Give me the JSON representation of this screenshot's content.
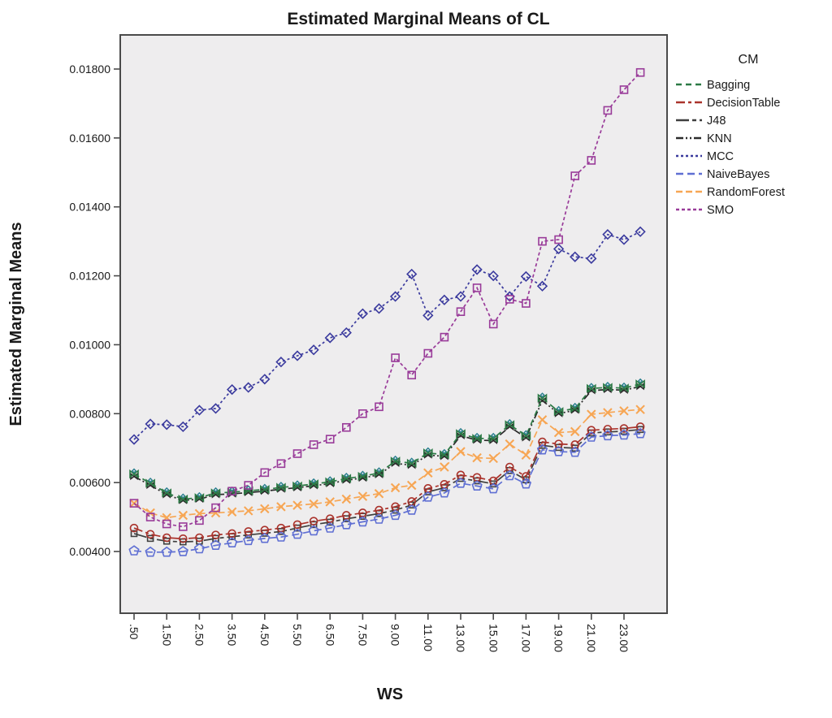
{
  "chart_data": {
    "type": "line",
    "title": "Estimated Marginal Means of CL",
    "xlabel": "WS",
    "ylabel": "Estimated Marginal Means",
    "legend_title": "CM",
    "plot_bg": "#eeedee",
    "frame_color": "#4a4a4a",
    "x": [
      0.5,
      1.0,
      1.5,
      2.0,
      2.5,
      3.0,
      3.5,
      4.0,
      4.5,
      5.0,
      5.5,
      6.0,
      6.5,
      7.0,
      7.5,
      8.0,
      9.0,
      10.0,
      11.0,
      12.0,
      13.0,
      14.0,
      15.0,
      16.0,
      17.0,
      18.0,
      19.0,
      20.0,
      21.0,
      22.0,
      23.0,
      24.0
    ],
    "x_tick_labels": [
      ".50",
      "1.50",
      "2.50",
      "3.50",
      "4.50",
      "5.50",
      "6.50",
      "7.50",
      "9.00",
      "11.00",
      "13.00",
      "15.00",
      "17.00",
      "19.00",
      "21.00",
      "23.00"
    ],
    "y_ticks": [
      0.004,
      0.006,
      0.008,
      0.01,
      0.012,
      0.014,
      0.016,
      0.018
    ],
    "y_tick_labels": [
      "0.00400",
      "0.00600",
      "0.00800",
      "0.01000",
      "0.01200",
      "0.01400",
      "0.01600",
      "0.01800"
    ],
    "legend_position": "right",
    "grid": false,
    "series": [
      {
        "name": "Bagging",
        "color": "#2c7a45",
        "dash": "7 5",
        "marker": "bowtie",
        "values": [
          0.00625,
          0.00598,
          0.0057,
          0.00552,
          0.00556,
          0.0057,
          0.00572,
          0.00576,
          0.0058,
          0.00586,
          0.0059,
          0.00596,
          0.00602,
          0.00612,
          0.00618,
          0.00628,
          0.00662,
          0.00656,
          0.00686,
          0.00681,
          0.00742,
          0.00728,
          0.00728,
          0.00768,
          0.00736,
          0.00845,
          0.00806,
          0.00815,
          0.00873,
          0.00876,
          0.00874,
          0.00886
        ]
      },
      {
        "name": "DecisionTable",
        "color": "#aa332c",
        "dash": "11 4 4 4",
        "marker": "circle",
        "values": [
          0.00468,
          0.0045,
          0.0044,
          0.00437,
          0.0044,
          0.00448,
          0.00452,
          0.00458,
          0.00462,
          0.00468,
          0.00478,
          0.00488,
          0.00495,
          0.00505,
          0.00512,
          0.0052,
          0.0053,
          0.00545,
          0.00583,
          0.00595,
          0.00622,
          0.00615,
          0.00605,
          0.00645,
          0.00618,
          0.00718,
          0.00712,
          0.0071,
          0.00752,
          0.00755,
          0.00757,
          0.00762
        ]
      },
      {
        "name": "J48",
        "color": "#3f3f3f",
        "dash": "16 4 5 4",
        "marker": "square",
        "values": [
          0.00452,
          0.00438,
          0.0043,
          0.00428,
          0.0043,
          0.00438,
          0.00443,
          0.00448,
          0.00453,
          0.00458,
          0.00468,
          0.00478,
          0.00485,
          0.00495,
          0.00502,
          0.0051,
          0.0052,
          0.00535,
          0.00573,
          0.00585,
          0.00612,
          0.00605,
          0.00596,
          0.00635,
          0.00608,
          0.00708,
          0.00702,
          0.007,
          0.00744,
          0.00747,
          0.00749,
          0.00754
        ]
      },
      {
        "name": "KNN",
        "color": "#2b2b2b",
        "dash": "9 3 2 3 2 3",
        "marker": "bowtie-small",
        "values": [
          0.00618,
          0.00592,
          0.00565,
          0.00548,
          0.00552,
          0.00565,
          0.00567,
          0.00571,
          0.00575,
          0.00581,
          0.00585,
          0.00591,
          0.00597,
          0.00607,
          0.00613,
          0.00623,
          0.00656,
          0.0065,
          0.0068,
          0.00676,
          0.00736,
          0.00723,
          0.00722,
          0.00762,
          0.0073,
          0.00838,
          0.008,
          0.0081,
          0.00867,
          0.0087,
          0.00868,
          0.00879
        ]
      },
      {
        "name": "MCC",
        "color": "#3b3b9e",
        "dash": "3 3",
        "marker": "diamond",
        "values": [
          0.00725,
          0.0077,
          0.00768,
          0.00762,
          0.0081,
          0.00815,
          0.0087,
          0.00876,
          0.009,
          0.0095,
          0.00968,
          0.00985,
          0.0102,
          0.01035,
          0.0109,
          0.01105,
          0.0114,
          0.01205,
          0.01085,
          0.0113,
          0.0114,
          0.01218,
          0.012,
          0.0114,
          0.01198,
          0.0117,
          0.01278,
          0.01255,
          0.0125,
          0.0132,
          0.01305,
          0.01328
        ]
      },
      {
        "name": "NaiveBayes",
        "color": "#5f6fd3",
        "dash": "9 5",
        "marker": "pentagon",
        "values": [
          0.00402,
          0.00398,
          0.00398,
          0.004,
          0.00408,
          0.00418,
          0.00425,
          0.00432,
          0.00438,
          0.00442,
          0.0045,
          0.0046,
          0.00468,
          0.00478,
          0.00486,
          0.00494,
          0.00505,
          0.0052,
          0.00558,
          0.0057,
          0.00598,
          0.0059,
          0.00582,
          0.0062,
          0.00596,
          0.00695,
          0.0069,
          0.00688,
          0.00732,
          0.00736,
          0.00738,
          0.00742
        ]
      },
      {
        "name": "RandomForest",
        "color": "#f7a654",
        "dash": "8 4",
        "marker": "x",
        "values": [
          0.0054,
          0.00512,
          0.00498,
          0.00505,
          0.0051,
          0.00512,
          0.00515,
          0.00518,
          0.00524,
          0.0053,
          0.00534,
          0.00538,
          0.00544,
          0.00552,
          0.0056,
          0.00568,
          0.00585,
          0.00592,
          0.00628,
          0.00645,
          0.0069,
          0.00672,
          0.0067,
          0.00712,
          0.0068,
          0.00782,
          0.00745,
          0.00748,
          0.00798,
          0.00803,
          0.00808,
          0.00812
        ]
      },
      {
        "name": "SMO",
        "color": "#993b99",
        "dash": "4 3",
        "marker": "square-open",
        "values": [
          0.0054,
          0.005,
          0.0048,
          0.00472,
          0.0049,
          0.00527,
          0.00575,
          0.00592,
          0.00629,
          0.00655,
          0.00684,
          0.0071,
          0.00726,
          0.0076,
          0.008,
          0.0082,
          0.00962,
          0.00912,
          0.00975,
          0.01022,
          0.01096,
          0.01165,
          0.0106,
          0.01132,
          0.0112,
          0.013,
          0.01305,
          0.0149,
          0.01535,
          0.0168,
          0.0174,
          0.0179
        ]
      }
    ]
  }
}
